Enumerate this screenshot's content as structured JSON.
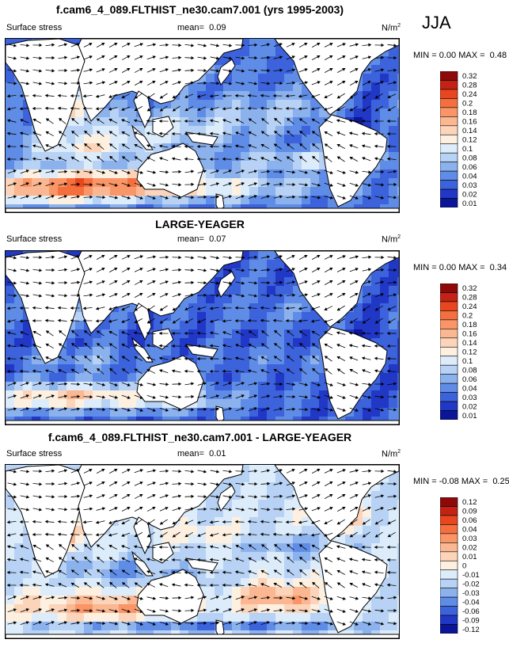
{
  "season": "JJA",
  "chart_data": [
    {
      "type": "heatmap",
      "title": "f.cam6_4_089.FLTHIST_ne30.cam7.001 (yrs 1995-2003)",
      "variable": "Surface stress",
      "mean_label": "mean=",
      "mean": "0.09",
      "units": "N/m",
      "units_exp": "2",
      "min_label": "MIN =",
      "min": "0.00",
      "max_label": "MAX =",
      "max": "0.48",
      "colorbar_levels": [
        "0.32",
        "0.28",
        "0.24",
        "0.2",
        "0.18",
        "0.16",
        "0.14",
        "0.12",
        "0.1",
        "0.08",
        "0.06",
        "0.04",
        "0.03",
        "0.02",
        "0.01"
      ],
      "colorbar_colors": [
        "#8c0a0a",
        "#c32214",
        "#e8461f",
        "#f56f3e",
        "#f99566",
        "#fbb791",
        "#fcd4ba",
        "#fdf0e0",
        "#ddecfa",
        "#b7d2f4",
        "#8cb2ee",
        "#5f8ce6",
        "#3c62dc",
        "#2137c6",
        "#0a1597"
      ]
    },
    {
      "type": "heatmap",
      "title": "LARGE-YEAGER",
      "variable": "Surface stress",
      "mean_label": "mean=",
      "mean": "0.07",
      "units": "N/m",
      "units_exp": "2",
      "min_label": "MIN =",
      "min": "0.00",
      "max_label": "MAX =",
      "max": "0.34",
      "colorbar_levels": [
        "0.32",
        "0.28",
        "0.24",
        "0.2",
        "0.18",
        "0.16",
        "0.14",
        "0.12",
        "0.1",
        "0.08",
        "0.06",
        "0.04",
        "0.03",
        "0.02",
        "0.01"
      ],
      "colorbar_colors": [
        "#8c0a0a",
        "#c32214",
        "#e8461f",
        "#f56f3e",
        "#f99566",
        "#fbb791",
        "#fcd4ba",
        "#fdf0e0",
        "#ddecfa",
        "#b7d2f4",
        "#8cb2ee",
        "#5f8ce6",
        "#3c62dc",
        "#2137c6",
        "#0a1597"
      ]
    },
    {
      "type": "heatmap",
      "title": "f.cam6_4_089.FLTHIST_ne30.cam7.001 - LARGE-YEAGER",
      "variable": "Surface stress",
      "mean_label": "mean=",
      "mean": "0.01",
      "units": "N/m",
      "units_exp": "2",
      "min_label": "MIN =",
      "min": "-0.08",
      "max_label": "MAX =",
      "max": "0.25",
      "colorbar_levels": [
        "0.12",
        "0.09",
        "0.06",
        "0.04",
        "0.03",
        "0.02",
        "0.01",
        "0",
        "-0.01",
        "-0.02",
        "-0.03",
        "-0.04",
        "-0.06",
        "-0.09",
        "-0.12"
      ],
      "colorbar_colors": [
        "#8c0a0a",
        "#c32214",
        "#e8461f",
        "#f56f3e",
        "#f99566",
        "#fbb791",
        "#fcd4ba",
        "#fdf0e0",
        "#ddecfa",
        "#b7d2f4",
        "#8cb2ee",
        "#5f8ce6",
        "#3c62dc",
        "#2137c6",
        "#0a1597"
      ]
    }
  ]
}
